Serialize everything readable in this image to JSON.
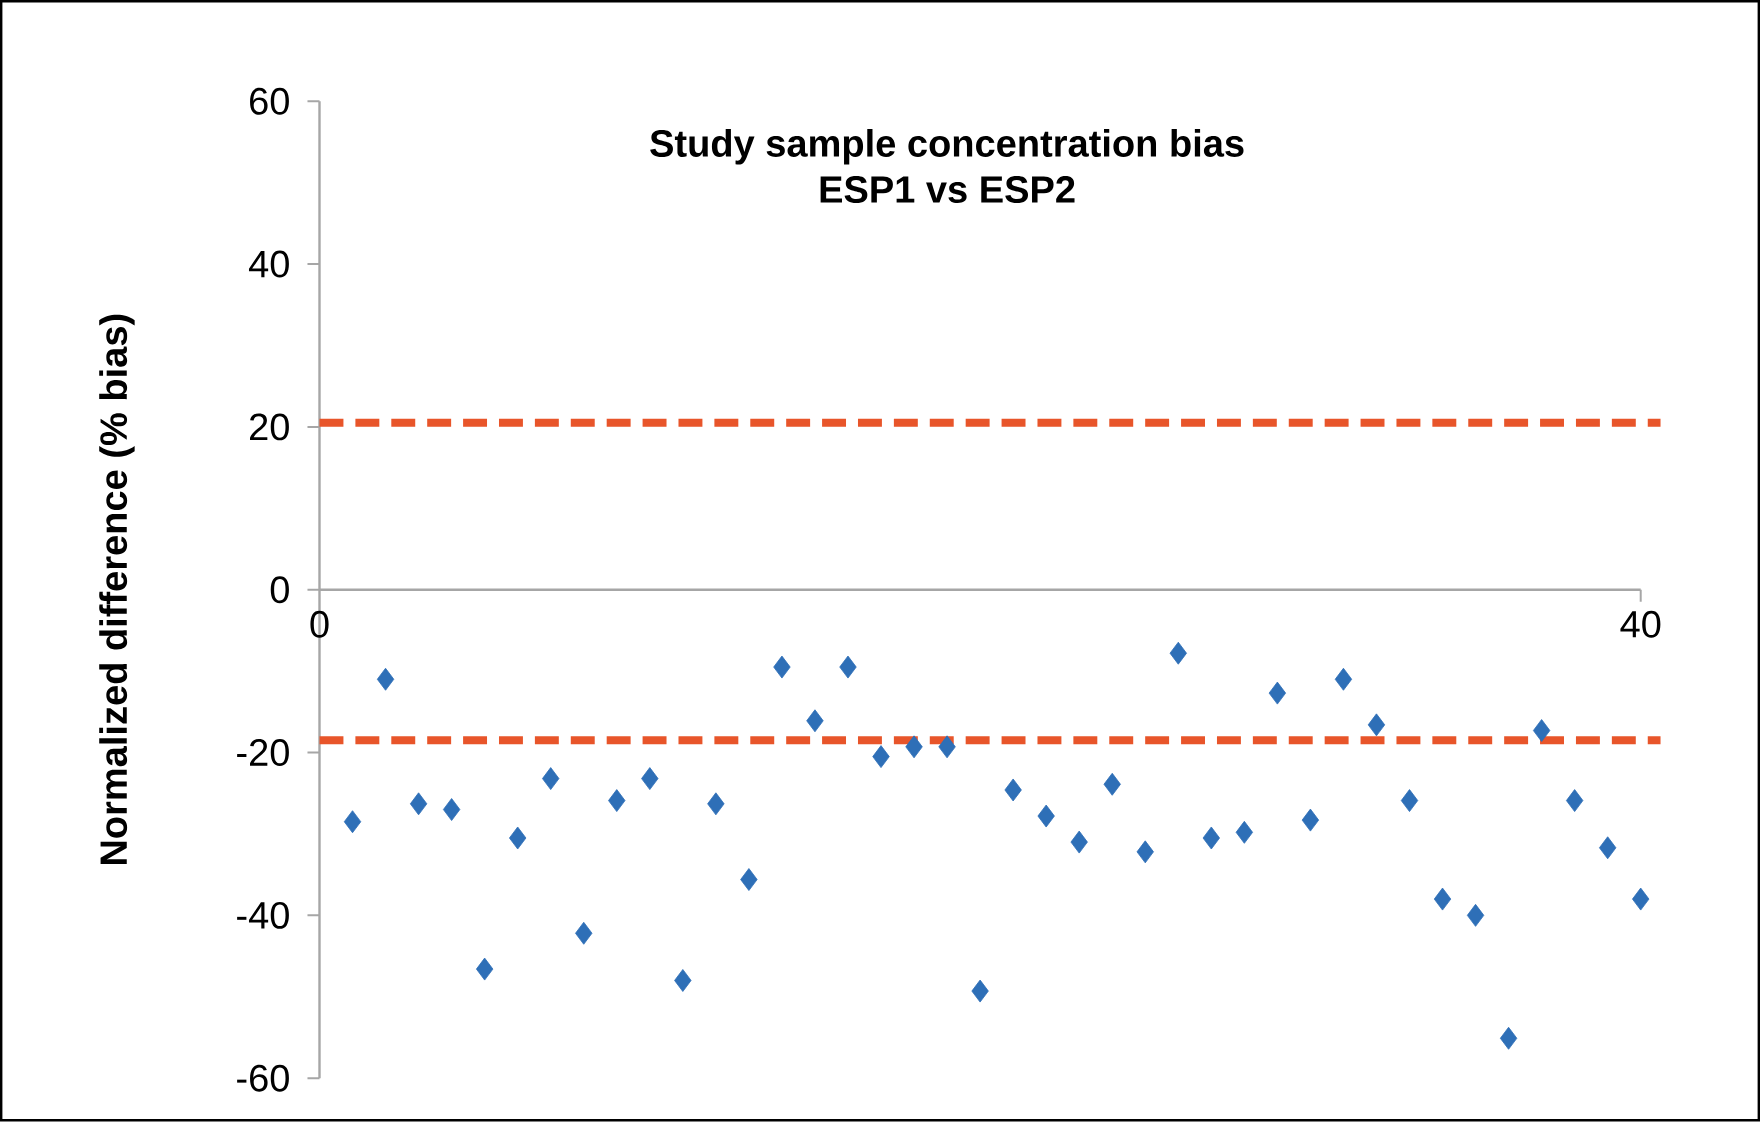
{
  "chart_data": {
    "type": "scatter",
    "title": "Study sample concentration bias",
    "subtitle": "ESP1 vs ESP2",
    "ylabel": "Normalized difference (% bias)",
    "x": [
      1,
      2,
      3,
      4,
      5,
      6,
      7,
      8,
      9,
      10,
      11,
      12,
      13,
      14,
      15,
      16,
      17,
      18,
      19,
      20,
      21,
      22,
      23,
      24,
      25,
      26,
      27,
      28,
      29,
      30,
      31,
      32,
      33,
      34,
      35,
      36,
      37,
      38,
      39,
      40
    ],
    "values": [
      -28.5,
      -11,
      -26.3,
      -27,
      -46.6,
      -30.5,
      -23.2,
      -42.2,
      -25.9,
      -23.2,
      -48,
      -26.3,
      -35.6,
      -9.5,
      -16.1,
      -9.5,
      -20.5,
      -19.3,
      -19.3,
      -49.3,
      -24.6,
      -27.8,
      -31,
      -23.9,
      -32.2,
      -7.8,
      -30.5,
      -29.8,
      -12.7,
      -28.3,
      -11,
      -16.6,
      -25.9,
      -38,
      -40,
      -55.1,
      -17.3,
      -25.9,
      -31.7,
      -38
    ],
    "color": "#2e6fb7",
    "marker": "diamond",
    "xlim": [
      0,
      40
    ],
    "xticks": [
      0,
      40
    ],
    "ylim": [
      -60,
      60
    ],
    "yticks": [
      -60,
      -40,
      -20,
      0,
      20,
      40,
      60
    ],
    "ref_lines": [
      {
        "axis": "y",
        "value": 20.5,
        "color": "#e8552a",
        "line_style": "dashed"
      },
      {
        "axis": "y",
        "value": -18.5,
        "color": "#e8552a",
        "line_style": "dashed"
      }
    ]
  }
}
